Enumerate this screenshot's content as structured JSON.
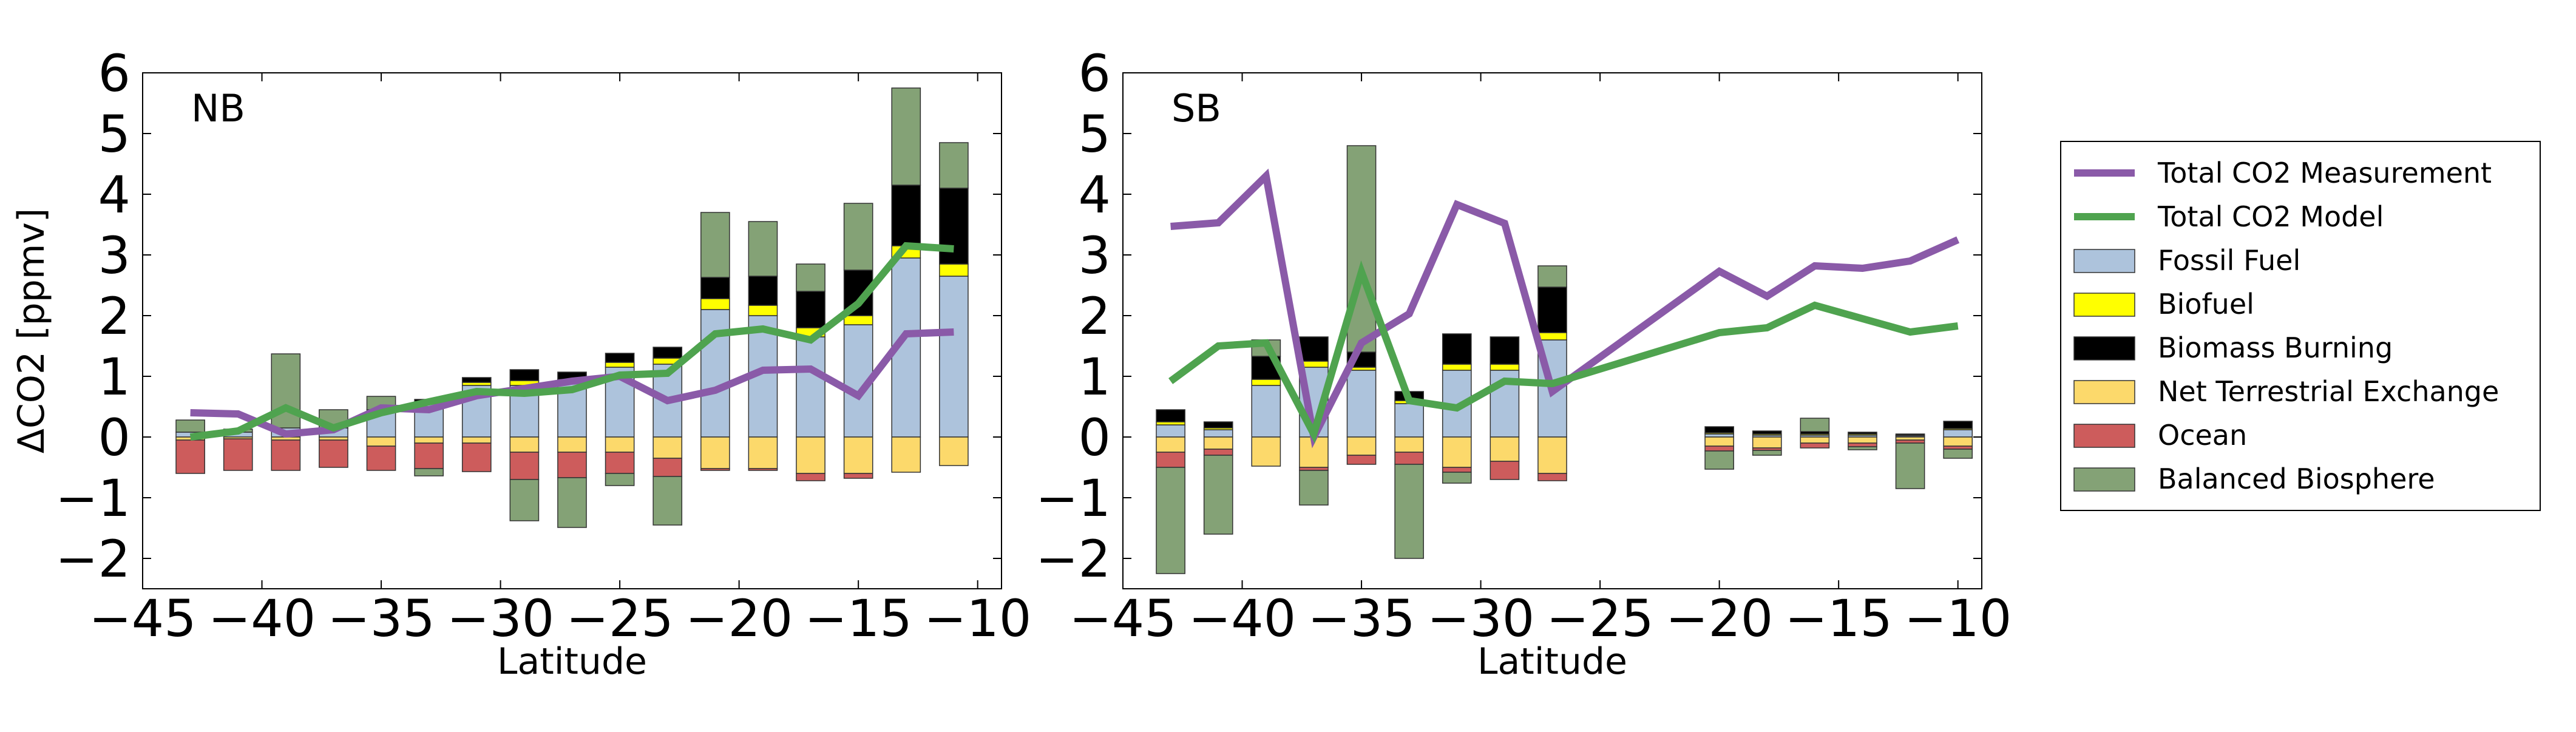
{
  "colors": {
    "measurement": "#8a5aa8",
    "model": "#4fa34f",
    "fossil_fuel": "#adc3dc",
    "biofuel": "#ffff00",
    "biomass_burning": "#000000",
    "net_terrestrial_exchange": "#fcd96b",
    "ocean": "#cd5c5c",
    "balanced_biosphere": "#84a276"
  },
  "legend": {
    "placement": "right-outside",
    "items": [
      {
        "key": "measurement",
        "kind": "line",
        "label": "Total CO2 Measurement"
      },
      {
        "key": "model",
        "kind": "line",
        "label": "Total CO2 Model"
      },
      {
        "key": "fossil_fuel",
        "kind": "box",
        "label": "Fossil Fuel"
      },
      {
        "key": "biofuel",
        "kind": "box",
        "label": "Biofuel"
      },
      {
        "key": "biomass_burning",
        "kind": "box",
        "label": "Biomass Burning"
      },
      {
        "key": "net_terrestrial_exchange",
        "kind": "box",
        "label": "Net Terrestrial Exchange"
      },
      {
        "key": "ocean",
        "kind": "box",
        "label": "Ocean"
      },
      {
        "key": "balanced_biosphere",
        "kind": "box",
        "label": "Balanced Biosphere"
      }
    ]
  },
  "chart_data": [
    {
      "type": "bar",
      "label": "NB",
      "xlabel": "Latitude",
      "ylabel": "ΔCO2 [ppmv]",
      "xlim": [
        -45,
        -9
      ],
      "ylim": [
        -2.5,
        6
      ],
      "xticks": [
        -45,
        -40,
        -35,
        -30,
        -25,
        -20,
        -15,
        -10
      ],
      "xtick_labels": [
        "−45",
        "−40",
        "−35",
        "−30",
        "−25",
        "−20",
        "−15",
        "−10"
      ],
      "yticks": [
        -2,
        -1,
        0,
        1,
        2,
        3,
        4,
        5,
        6
      ],
      "ytick_labels": [
        "−2",
        "−1",
        "0",
        "1",
        "2",
        "3",
        "4",
        "5",
        "6"
      ],
      "bar_width": 1.2,
      "bars": [
        {
          "x": -43,
          "fossil_fuel": 0.08,
          "biofuel": 0,
          "biomass_burning": 0,
          "net_terrestrial_exchange": -0.05,
          "ocean": -0.55,
          "balanced_biosphere": 0.2
        },
        {
          "x": -41,
          "fossil_fuel": 0.08,
          "biofuel": 0,
          "biomass_burning": 0,
          "net_terrestrial_exchange": -0.03,
          "ocean": -0.52,
          "balanced_biosphere": 0.05
        },
        {
          "x": -39,
          "fossil_fuel": 0.15,
          "biofuel": 0,
          "biomass_burning": 0,
          "net_terrestrial_exchange": -0.05,
          "ocean": -0.5,
          "balanced_biosphere": 1.22
        },
        {
          "x": -37,
          "fossil_fuel": 0.15,
          "biofuel": 0,
          "biomass_burning": 0,
          "net_terrestrial_exchange": -0.05,
          "ocean": -0.45,
          "balanced_biosphere": 0.3
        },
        {
          "x": -35,
          "fossil_fuel": 0.45,
          "biofuel": 0,
          "biomass_burning": 0,
          "net_terrestrial_exchange": -0.15,
          "ocean": -0.4,
          "balanced_biosphere": 0.22
        },
        {
          "x": -33,
          "fossil_fuel": 0.55,
          "biofuel": 0.02,
          "biomass_burning": 0.05,
          "net_terrestrial_exchange": -0.1,
          "ocean": -0.42,
          "balanced_biosphere": -0.12
        },
        {
          "x": -31,
          "fossil_fuel": 0.85,
          "biofuel": 0.05,
          "biomass_burning": 0.08,
          "net_terrestrial_exchange": -0.1,
          "ocean": -0.47,
          "balanced_biosphere": 0
        },
        {
          "x": -29,
          "fossil_fuel": 0.85,
          "biofuel": 0.08,
          "biomass_burning": 0.18,
          "net_terrestrial_exchange": -0.25,
          "ocean": -0.45,
          "balanced_biosphere": -0.68
        },
        {
          "x": -27,
          "fossil_fuel": 0.9,
          "biofuel": 0.05,
          "biomass_burning": 0.12,
          "net_terrestrial_exchange": -0.25,
          "ocean": -0.42,
          "balanced_biosphere": -0.82
        },
        {
          "x": -25,
          "fossil_fuel": 1.15,
          "biofuel": 0.08,
          "biomass_burning": 0.15,
          "net_terrestrial_exchange": -0.25,
          "ocean": -0.35,
          "balanced_biosphere": -0.2
        },
        {
          "x": -23,
          "fossil_fuel": 1.2,
          "biofuel": 0.1,
          "biomass_burning": 0.18,
          "net_terrestrial_exchange": -0.35,
          "ocean": -0.3,
          "balanced_biosphere": -0.8
        },
        {
          "x": -21,
          "fossil_fuel": 2.1,
          "biofuel": 0.18,
          "biomass_burning": 0.35,
          "net_terrestrial_exchange": -0.52,
          "ocean": -0.03,
          "balanced_biosphere": 1.07
        },
        {
          "x": -19,
          "fossil_fuel": 2.0,
          "biofuel": 0.17,
          "biomass_burning": 0.48,
          "net_terrestrial_exchange": -0.52,
          "ocean": -0.03,
          "balanced_biosphere": 0.9
        },
        {
          "x": -17,
          "fossil_fuel": 1.65,
          "biofuel": 0.15,
          "biomass_burning": 0.6,
          "net_terrestrial_exchange": -0.6,
          "ocean": -0.12,
          "balanced_biosphere": 0.45
        },
        {
          "x": -15,
          "fossil_fuel": 1.85,
          "biofuel": 0.15,
          "biomass_burning": 0.75,
          "net_terrestrial_exchange": -0.6,
          "ocean": -0.08,
          "balanced_biosphere": 1.1
        },
        {
          "x": -13,
          "fossil_fuel": 2.95,
          "biofuel": 0.2,
          "biomass_burning": 1.0,
          "net_terrestrial_exchange": -0.58,
          "ocean": 0,
          "balanced_biosphere": 1.6
        },
        {
          "x": -11,
          "fossil_fuel": 2.65,
          "biofuel": 0.2,
          "biomass_burning": 1.25,
          "net_terrestrial_exchange": -0.47,
          "ocean": 0,
          "balanced_biosphere": 0.75
        }
      ],
      "series": [
        {
          "key": "measurement",
          "name": "Total CO2 Measurement",
          "x": [
            -43,
            -41,
            -39,
            -37,
            -35,
            -33,
            -31,
            -29,
            -27,
            -25,
            -23,
            -21,
            -19,
            -17,
            -15,
            -13,
            -11
          ],
          "y": [
            0.4,
            0.38,
            0.05,
            0.12,
            0.48,
            0.45,
            0.68,
            0.8,
            0.92,
            1.0,
            0.6,
            0.77,
            1.1,
            1.12,
            0.68,
            1.7,
            1.73
          ]
        },
        {
          "key": "model",
          "name": "Total CO2 Model",
          "x": [
            -43,
            -41,
            -39,
            -37,
            -35,
            -33,
            -31,
            -29,
            -27,
            -25,
            -23,
            -21,
            -19,
            -17,
            -15,
            -13,
            -11
          ],
          "y": [
            0.0,
            0.1,
            0.48,
            0.15,
            0.4,
            0.58,
            0.75,
            0.72,
            0.78,
            1.02,
            1.05,
            1.7,
            1.78,
            1.6,
            2.2,
            3.15,
            3.1
          ]
        }
      ]
    },
    {
      "type": "bar",
      "label": "SB",
      "xlabel": "Latitude",
      "ylabel": "",
      "xlim": [
        -45,
        -9
      ],
      "ylim": [
        -2.5,
        6
      ],
      "xticks": [
        -45,
        -40,
        -35,
        -30,
        -25,
        -20,
        -15,
        -10
      ],
      "xtick_labels": [
        "−45",
        "−40",
        "−35",
        "−30",
        "−25",
        "−20",
        "−15",
        "−10"
      ],
      "yticks": [
        -2,
        -1,
        0,
        1,
        2,
        3,
        4,
        5,
        6
      ],
      "ytick_labels": [
        "−2",
        "−1",
        "0",
        "1",
        "2",
        "3",
        "4",
        "5",
        "6"
      ],
      "bar_width": 1.2,
      "bars": [
        {
          "x": -43,
          "fossil_fuel": 0.2,
          "biofuel": 0.05,
          "biomass_burning": 0.2,
          "net_terrestrial_exchange": -0.25,
          "ocean": -0.25,
          "balanced_biosphere": -1.75
        },
        {
          "x": -41,
          "fossil_fuel": 0.12,
          "biofuel": 0.03,
          "biomass_burning": 0.1,
          "net_terrestrial_exchange": -0.2,
          "ocean": -0.1,
          "balanced_biosphere": -1.3
        },
        {
          "x": -39,
          "fossil_fuel": 0.85,
          "biofuel": 0.1,
          "biomass_burning": 0.38,
          "net_terrestrial_exchange": -0.48,
          "ocean": 0,
          "balanced_biosphere": 0.27
        },
        {
          "x": -37,
          "fossil_fuel": 1.15,
          "biofuel": 0.1,
          "biomass_burning": 0.4,
          "net_terrestrial_exchange": -0.5,
          "ocean": -0.05,
          "balanced_biosphere": -0.57
        },
        {
          "x": -35,
          "fossil_fuel": 1.1,
          "biofuel": 0.05,
          "biomass_burning": 0.25,
          "net_terrestrial_exchange": -0.3,
          "ocean": -0.15,
          "balanced_biosphere": 3.4
        },
        {
          "x": -33,
          "fossil_fuel": 0.55,
          "biofuel": 0.05,
          "biomass_burning": 0.15,
          "net_terrestrial_exchange": -0.25,
          "ocean": -0.2,
          "balanced_biosphere": -1.55
        },
        {
          "x": -31,
          "fossil_fuel": 1.1,
          "biofuel": 0.1,
          "biomass_burning": 0.5,
          "net_terrestrial_exchange": -0.5,
          "ocean": -0.08,
          "balanced_biosphere": -0.18
        },
        {
          "x": -29,
          "fossil_fuel": 1.1,
          "biofuel": 0.1,
          "biomass_burning": 0.45,
          "net_terrestrial_exchange": -0.4,
          "ocean": -0.3,
          "balanced_biosphere": 0
        },
        {
          "x": -27,
          "fossil_fuel": 1.6,
          "biofuel": 0.12,
          "biomass_burning": 0.75,
          "net_terrestrial_exchange": -0.6,
          "ocean": -0.12,
          "balanced_biosphere": 0.35
        },
        {
          "x": -20,
          "fossil_fuel": 0.05,
          "biofuel": 0.02,
          "biomass_burning": 0.1,
          "net_terrestrial_exchange": -0.15,
          "ocean": -0.08,
          "balanced_biosphere": -0.3
        },
        {
          "x": -18,
          "fossil_fuel": 0.03,
          "biofuel": 0.02,
          "biomass_burning": 0.05,
          "net_terrestrial_exchange": -0.18,
          "ocean": -0.04,
          "balanced_biosphere": -0.08
        },
        {
          "x": -16,
          "fossil_fuel": 0.03,
          "biofuel": 0.02,
          "biomass_burning": 0.04,
          "net_terrestrial_exchange": -0.1,
          "ocean": -0.08,
          "balanced_biosphere": 0.22
        },
        {
          "x": -14,
          "fossil_fuel": 0.03,
          "biofuel": 0.02,
          "biomass_burning": 0.03,
          "net_terrestrial_exchange": -0.1,
          "ocean": -0.06,
          "balanced_biosphere": -0.05
        },
        {
          "x": -12,
          "fossil_fuel": 0.02,
          "biofuel": 0.01,
          "biomass_burning": 0.02,
          "net_terrestrial_exchange": -0.05,
          "ocean": -0.05,
          "balanced_biosphere": -0.75
        },
        {
          "x": -10,
          "fossil_fuel": 0.12,
          "biofuel": 0.02,
          "biomass_burning": 0.12,
          "net_terrestrial_exchange": -0.15,
          "ocean": -0.05,
          "balanced_biosphere": -0.15
        }
      ],
      "series": [
        {
          "key": "measurement",
          "name": "Total CO2 Measurement",
          "x": [
            -43,
            -41,
            -39,
            -37,
            -35,
            -33,
            -31,
            -29,
            -27,
            -20,
            -18,
            -16,
            -14,
            -12,
            -10
          ],
          "y": [
            3.47,
            3.53,
            4.3,
            0.0,
            1.55,
            2.03,
            3.83,
            3.52,
            0.75,
            2.73,
            2.32,
            2.82,
            2.78,
            2.9,
            3.25
          ]
        },
        {
          "key": "model",
          "name": "Total CO2 Model",
          "x": [
            -43,
            -41,
            -39,
            -37,
            -35,
            -33,
            -31,
            -29,
            -27,
            -20,
            -18,
            -16,
            -14,
            -12,
            -10
          ],
          "y": [
            0.92,
            1.5,
            1.55,
            0.05,
            2.72,
            0.6,
            0.48,
            0.92,
            0.88,
            1.72,
            1.8,
            2.17,
            1.95,
            1.73,
            1.83
          ]
        }
      ]
    }
  ]
}
